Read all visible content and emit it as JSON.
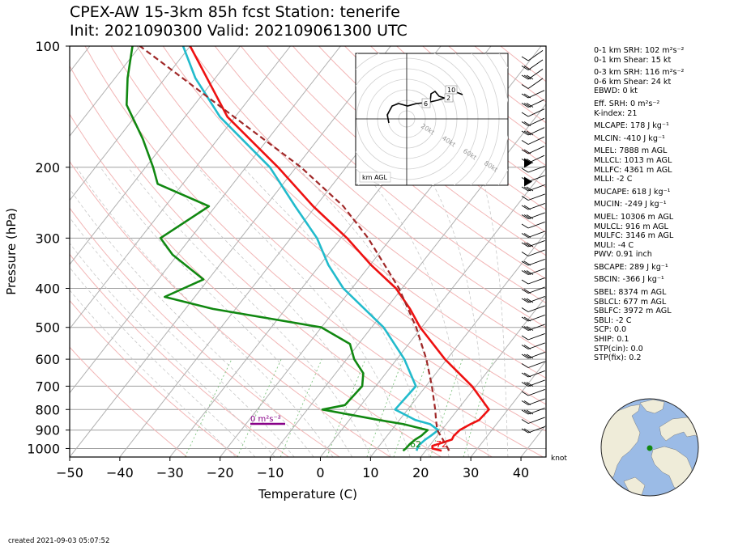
{
  "title": {
    "line1": "CPEX-AW 15-3km  85h fcst  Station: tenerife",
    "line2": "Init: 2021090300  Valid: 202109061300 UTC"
  },
  "footer": {
    "created": "created 2021-09-03 05:07:52"
  },
  "stats": [
    {
      "text": "0-1 km SRH: 102 m²s⁻²",
      "gap": false
    },
    {
      "text": "0-1 km Shear: 15 kt",
      "gap": false
    },
    {
      "text": "0-3 km SRH: 116 m²s⁻²",
      "gap": true
    },
    {
      "text": "0-6 km Shear: 24 kt",
      "gap": false
    },
    {
      "text": "EBWD: 0 kt",
      "gap": false
    },
    {
      "text": "Eff. SRH: 0 m²s⁻²",
      "gap": true
    },
    {
      "text": "K-index: 21",
      "gap": false
    },
    {
      "text": "MLCAPE: 178 J kg⁻¹",
      "gap": true
    },
    {
      "text": "MLCIN: -410 J kg⁻¹",
      "gap": true
    },
    {
      "text": "MLEL: 7888 m AGL",
      "gap": true
    },
    {
      "text": "MLLCL: 1013 m AGL",
      "gap": false
    },
    {
      "text": "MLLFC: 4361 m AGL",
      "gap": false
    },
    {
      "text": "MLLI: -2 C",
      "gap": false
    },
    {
      "text": "MUCAPE: 618 J kg⁻¹",
      "gap": true
    },
    {
      "text": "MUCIN: -249 J kg⁻¹",
      "gap": true
    },
    {
      "text": "MUEL: 10306 m AGL",
      "gap": true
    },
    {
      "text": "MULCL: 916 m AGL",
      "gap": false
    },
    {
      "text": "MULFC: 3146 m AGL",
      "gap": false
    },
    {
      "text": "MULI: -4 C",
      "gap": false
    },
    {
      "text": "PWV: 0.91 inch",
      "gap": false
    },
    {
      "text": "SBCAPE: 289 J kg⁻¹",
      "gap": true
    },
    {
      "text": "SBCIN: -366 J kg⁻¹",
      "gap": true
    },
    {
      "text": "SBEL: 8374 m AGL",
      "gap": true
    },
    {
      "text": "SBLCL: 677 m AGL",
      "gap": false
    },
    {
      "text": "SBLFC: 3972 m AGL",
      "gap": false
    },
    {
      "text": "SBLI: -2 C",
      "gap": false
    },
    {
      "text": "SCP: 0.0",
      "gap": false
    },
    {
      "text": "SHIP: 0.1",
      "gap": false
    },
    {
      "text": "STP(cin): 0.0",
      "gap": false
    },
    {
      "text": "STP(fix): 0.2",
      "gap": false
    }
  ],
  "chart_data": {
    "type": "line",
    "subtype": "skew-T log-p",
    "xlabel": "Temperature (C)",
    "ylabel": "Pressure (hPa)",
    "xlim": [
      -50,
      45
    ],
    "ylim": [
      1050,
      100
    ],
    "x_ticks": [
      -50,
      -40,
      -30,
      -20,
      -10,
      0,
      10,
      20,
      30,
      40
    ],
    "y_ticks": [
      100,
      200,
      300,
      400,
      500,
      600,
      700,
      800,
      900,
      1000
    ],
    "y_scale": "log",
    "wind_unit_label": "knot",
    "colors": {
      "temperature": "#ee1111",
      "dewpoint": "#118811",
      "wetbulb": "#22bbcc",
      "parcel": "#a02828",
      "srh_bar": "#880088"
    },
    "surface_labels": {
      "dewpoint": "62",
      "temperature": "72"
    },
    "srh_label": "0 m²s⁻²",
    "series": [
      {
        "name": "temperature",
        "color": "#ee1111",
        "points": [
          [
            1013,
            23.2
          ],
          [
            1000,
            21
          ],
          [
            985,
            20.6
          ],
          [
            965,
            22.3
          ],
          [
            950,
            23.5
          ],
          [
            930,
            23.3
          ],
          [
            900,
            23.6
          ],
          [
            870,
            24.8
          ],
          [
            850,
            25.9
          ],
          [
            800,
            26.2
          ],
          [
            700,
            19.2
          ],
          [
            600,
            9.6
          ],
          [
            500,
            -0.3
          ],
          [
            450,
            -5.2
          ],
          [
            400,
            -11.2
          ],
          [
            350,
            -19.8
          ],
          [
            300,
            -28.8
          ],
          [
            250,
            -40.5
          ],
          [
            200,
            -53.6
          ],
          [
            150,
            -71.5
          ],
          [
            100,
            -90
          ]
        ]
      },
      {
        "name": "dewpoint",
        "color": "#118811",
        "points": [
          [
            1013,
            15.5
          ],
          [
            1000,
            15.7
          ],
          [
            975,
            15.8
          ],
          [
            950,
            16.2
          ],
          [
            930,
            16.8
          ],
          [
            900,
            17.2
          ],
          [
            870,
            11.5
          ],
          [
            850,
            6
          ],
          [
            800,
            -7
          ],
          [
            780,
            -3.2
          ],
          [
            700,
            -2.7
          ],
          [
            650,
            -4.5
          ],
          [
            600,
            -8.5
          ],
          [
            550,
            -11.7
          ],
          [
            500,
            -20
          ],
          [
            450,
            -44.5
          ],
          [
            420,
            -56
          ],
          [
            380,
            -51
          ],
          [
            330,
            -61
          ],
          [
            300,
            -66
          ],
          [
            250,
            -61.3
          ],
          [
            220,
            -75
          ],
          [
            200,
            -78.5
          ],
          [
            170,
            -85
          ],
          [
            140,
            -93.5
          ],
          [
            120,
            -97.5
          ],
          [
            100,
            -101.5
          ]
        ]
      },
      {
        "name": "wetbulb",
        "color": "#22bbcc",
        "points": [
          [
            1013,
            18.2
          ],
          [
            1000,
            18
          ],
          [
            980,
            17.8
          ],
          [
            950,
            18.2
          ],
          [
            930,
            18.7
          ],
          [
            900,
            19.3
          ],
          [
            870,
            16.8
          ],
          [
            850,
            13.2
          ],
          [
            800,
            7.5
          ],
          [
            700,
            8
          ],
          [
            600,
            1.5
          ],
          [
            500,
            -7.6
          ],
          [
            400,
            -21.7
          ],
          [
            350,
            -28.3
          ],
          [
            300,
            -34.8
          ],
          [
            250,
            -44.1
          ],
          [
            200,
            -55.2
          ],
          [
            150,
            -73
          ],
          [
            120,
            -84
          ],
          [
            100,
            -91.4
          ]
        ]
      },
      {
        "name": "parcel",
        "color": "#a02828",
        "dashed": true,
        "points": [
          [
            1013,
            24.7
          ],
          [
            950,
            21.7
          ],
          [
            900,
            19.1
          ],
          [
            850,
            17.3
          ],
          [
            800,
            15.5
          ],
          [
            700,
            11.2
          ],
          [
            600,
            5.9
          ],
          [
            500,
            -1.1
          ],
          [
            400,
            -10.6
          ],
          [
            300,
            -24.6
          ],
          [
            250,
            -34.5
          ],
          [
            200,
            -49
          ],
          [
            100,
            -100
          ]
        ]
      }
    ],
    "hodograph": {
      "range_rings_kt": [
        20,
        40,
        60,
        80
      ],
      "ring_labels": [
        "20kt",
        "40kt",
        "60kt",
        "80kt"
      ],
      "height_markers": [
        "6",
        "10",
        "2"
      ],
      "legend_label": "km AGL"
    }
  }
}
